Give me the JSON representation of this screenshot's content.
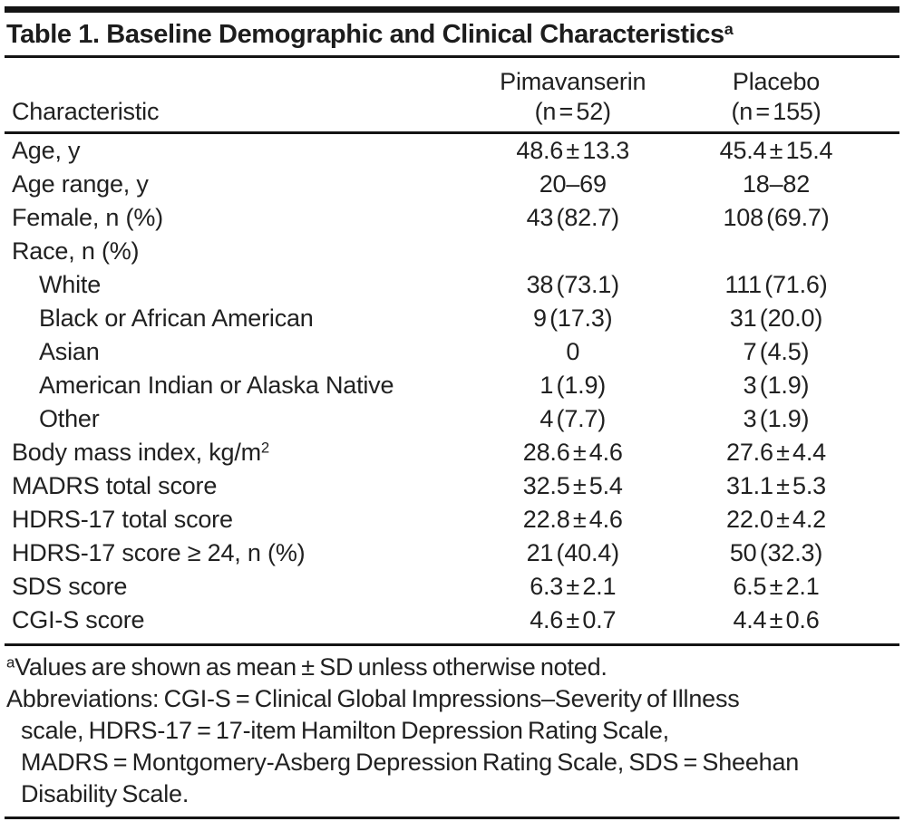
{
  "table": {
    "title": "Table 1. Baseline Demographic and Clinical Characteristics",
    "title_sup": "a",
    "columns": {
      "characteristic": "Characteristic",
      "groups": [
        {
          "name": "Pimavanserin",
          "n": "(n = 52)"
        },
        {
          "name": "Placebo",
          "n": "(n = 155)"
        }
      ]
    },
    "rows": [
      {
        "label": "Age, y",
        "pim": "48.6 ± 13.3",
        "pbo": "45.4 ± 15.4"
      },
      {
        "label": "Age range, y",
        "pim": "20–69",
        "pbo": "18–82"
      },
      {
        "label": "Female, n (%)",
        "pim": "43 (82.7)",
        "pbo": "108 (69.7)"
      },
      {
        "label": "Race, n (%)",
        "pim": "",
        "pbo": ""
      },
      {
        "label": "White",
        "indent": true,
        "pim": "38 (73.1)",
        "pbo": "111 (71.6)"
      },
      {
        "label": "Black or African American",
        "indent": true,
        "pim": "9 (17.3)",
        "pbo": "31 (20.0)"
      },
      {
        "label": "Asian",
        "indent": true,
        "pim": "0",
        "pbo": "7 (4.5)"
      },
      {
        "label": "American Indian or Alaska Native",
        "indent": true,
        "pim": "1 (1.9)",
        "pbo": "3 (1.9)"
      },
      {
        "label": "Other",
        "indent": true,
        "pim": "4 (7.7)",
        "pbo": "3 (1.9)"
      },
      {
        "label": "Body mass index, kg/m",
        "label_sup": "2",
        "pim": "28.6 ± 4.6",
        "pbo": "27.6 ± 4.4"
      },
      {
        "label": "MADRS total score",
        "pim": "32.5 ± 5.4",
        "pbo": "31.1 ± 5.3"
      },
      {
        "label": "HDRS-17 total score",
        "pim": "22.8 ± 4.6",
        "pbo": "22.0 ± 4.2"
      },
      {
        "label": "HDRS-17 score ≥ 24, n (%)",
        "pim": "21 (40.4)",
        "pbo": "50 (32.3)"
      },
      {
        "label": "SDS score",
        "pim": "6.3 ± 2.1",
        "pbo": "6.5 ± 2.1"
      },
      {
        "label": "CGI-S score",
        "pim": "4.6 ± 0.7",
        "pbo": "4.4 ± 0.6"
      }
    ],
    "footnotes": {
      "a_sup": "a",
      "a_text": "Values are shown as mean ± SD unless otherwise noted.",
      "abbreviation_lines": [
        "Abbreviations: CGI-S = Clinical Global Impressions–Severity of Illness",
        "scale, HDRS-17 = 17-item Hamilton Depression Rating Scale,",
        "MADRS = Montgomery-Asberg Depression Rating Scale, SDS = Sheehan",
        "Disability Scale."
      ]
    },
    "colors": {
      "text": "#212121",
      "rule": "#141414",
      "background": "#ffffff"
    }
  }
}
